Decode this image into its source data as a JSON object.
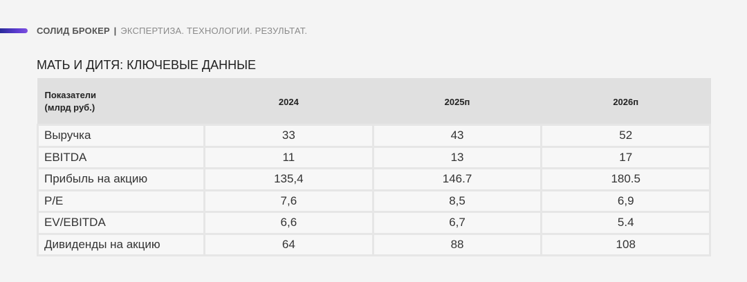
{
  "header": {
    "brand": "СОЛИД БРОКЕР",
    "separator": "|",
    "tagline": "ЭКСПЕРТИЗА. ТЕХНОЛОГИИ. РЕЗУЛЬТАТ."
  },
  "page_title": "МАТЬ И ДИТЯ: КЛЮЧЕВЫЕ ДАННЫЕ",
  "table": {
    "header": {
      "label_line1": "Показатели",
      "label_line2": "(млрд руб.)",
      "years": [
        "2024",
        "2025п",
        "2026п"
      ]
    },
    "rows": [
      {
        "label": "Выручка",
        "values": [
          "33",
          "43",
          "52"
        ]
      },
      {
        "label": "EBITDA",
        "values": [
          "11",
          "13",
          "17"
        ]
      },
      {
        "label": "Прибыль на акцию",
        "values": [
          "135,4",
          "146.7",
          "180.5"
        ]
      },
      {
        "label": "P/E",
        "values": [
          "7,6",
          "8,5",
          "6,9"
        ]
      },
      {
        "label": "EV/EBITDA",
        "values": [
          "6,6",
          "6,7",
          "5.4"
        ]
      },
      {
        "label": "Дивиденды на акцию",
        "values": [
          "64",
          "88",
          "108"
        ]
      }
    ]
  },
  "colors": {
    "accent": "#5b3ccf",
    "header_bg": "#e0e0e0",
    "page_bg": "#f4f4f4"
  }
}
